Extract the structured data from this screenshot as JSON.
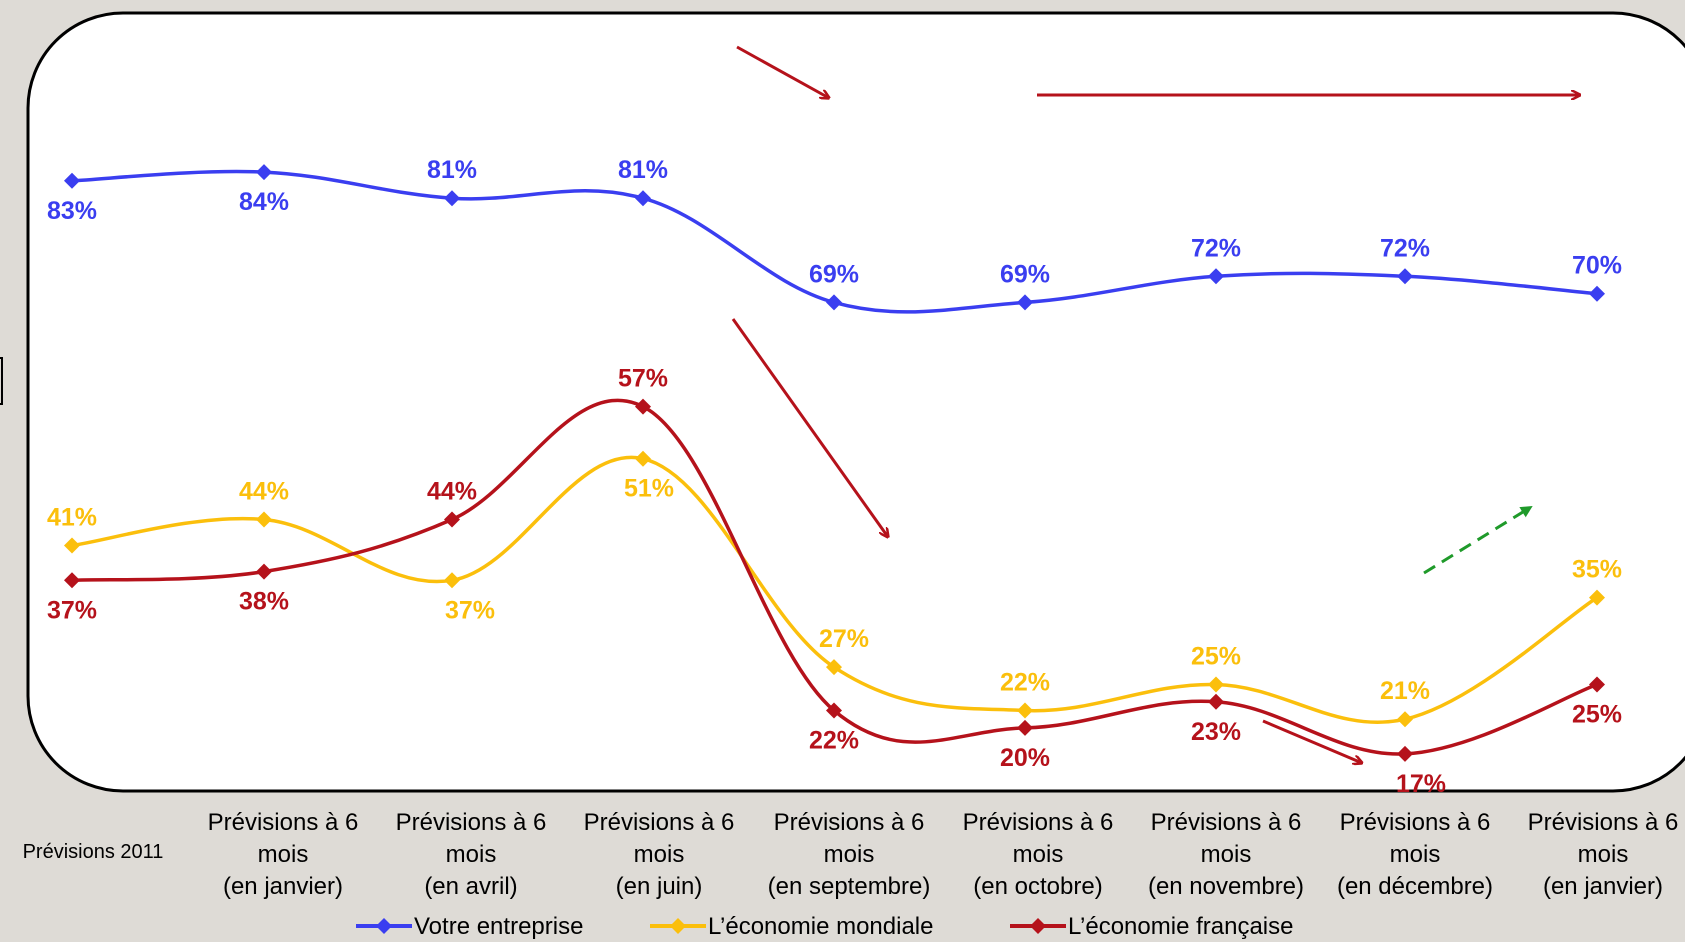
{
  "chart_data": {
    "type": "line",
    "title": "",
    "xlabel": "",
    "ylabel": "",
    "categories": [
      {
        "lines": [
          "Prévisions 2011"
        ]
      },
      {
        "lines": [
          "Prévisions à 6",
          "mois",
          "(en janvier)"
        ]
      },
      {
        "lines": [
          "Prévisions à 6",
          "mois",
          "(en avril)"
        ]
      },
      {
        "lines": [
          "Prévisions à 6",
          "mois",
          "(en juin)"
        ]
      },
      {
        "lines": [
          "Prévisions à 6",
          "mois",
          "(en septembre)"
        ]
      },
      {
        "lines": [
          "Prévisions à 6",
          "mois",
          "(en octobre)"
        ]
      },
      {
        "lines": [
          "Prévisions à 6",
          "mois",
          "(en novembre)"
        ]
      },
      {
        "lines": [
          "Prévisions à 6",
          "mois",
          "(en décembre)"
        ]
      },
      {
        "lines": [
          "Prévisions à 6",
          "mois",
          "(en janvier)"
        ]
      }
    ],
    "unit": "%",
    "series": [
      {
        "name": "Votre entreprise",
        "color": "#3a3ef0",
        "values": [
          83,
          84,
          81,
          81,
          69,
          69,
          72,
          72,
          70
        ]
      },
      {
        "name": "L’économie mondiale",
        "color": "#fbbf0c",
        "values": [
          41,
          44,
          37,
          51,
          27,
          22,
          25,
          21,
          35
        ]
      },
      {
        "name": "L’économie française",
        "color": "#b5121b",
        "values": [
          37,
          38,
          44,
          57,
          22,
          20,
          23,
          17,
          25
        ]
      }
    ],
    "legend_position": "bottom",
    "grid": false,
    "ylim": [
      14,
      90
    ],
    "trend_arrows": [
      {
        "color": "#b5121b",
        "style": "solid",
        "direction": "down",
        "near": "top-middle"
      },
      {
        "color": "#b5121b",
        "style": "solid",
        "direction": "flat",
        "near": "top-right"
      },
      {
        "color": "#b5121b",
        "style": "solid",
        "direction": "down",
        "near": "middle"
      },
      {
        "color": "#b5121b",
        "style": "solid",
        "direction": "down",
        "near": "bottom-right"
      },
      {
        "color": "#1f9a2a",
        "style": "dashed",
        "direction": "up",
        "near": "right"
      }
    ]
  }
}
